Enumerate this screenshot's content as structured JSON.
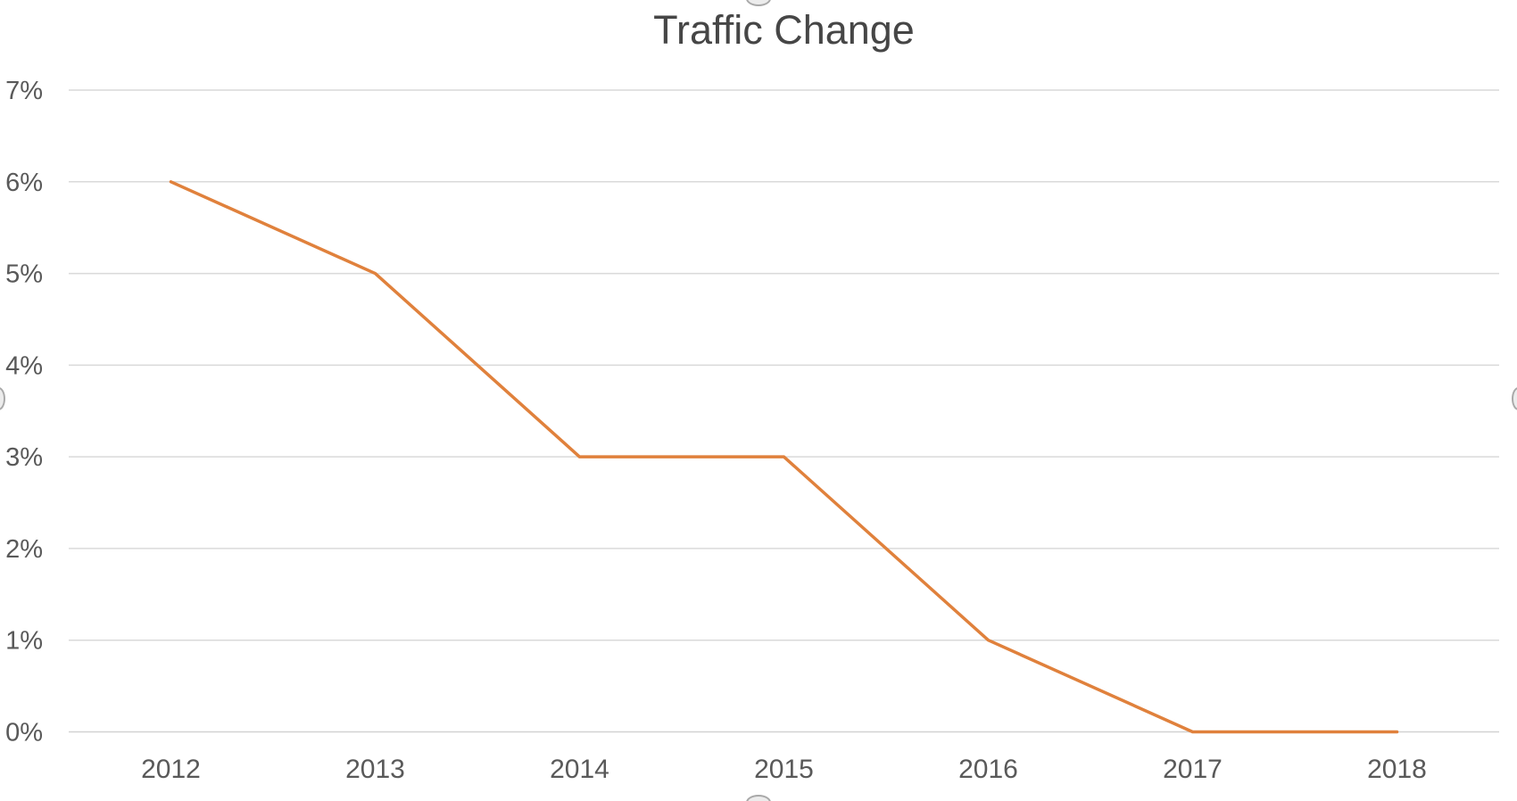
{
  "chart_data": {
    "type": "line",
    "title": "Traffic Change",
    "categories": [
      "2012",
      "2013",
      "2014",
      "2015",
      "2016",
      "2017",
      "2018"
    ],
    "series": [
      {
        "name": "Traffic Change",
        "values": [
          6,
          5,
          3,
          3,
          1,
          0,
          0
        ]
      }
    ],
    "y_tick_labels": [
      "0%",
      "1%",
      "2%",
      "3%",
      "4%",
      "5%",
      "6%",
      "7%"
    ],
    "ylim": [
      0,
      7
    ],
    "y_tick_step": 1,
    "xlabel": "",
    "ylabel": "",
    "grid": true,
    "legend": "none",
    "line_color": "#E0813C",
    "gridline_color": "#D9D9D9",
    "axis_line_color": "#D2D2D2",
    "label_color": "#595959",
    "title_color": "#464646"
  },
  "selection": {
    "state": "chart-selected",
    "handles": [
      "top",
      "bottom",
      "left",
      "right"
    ]
  }
}
